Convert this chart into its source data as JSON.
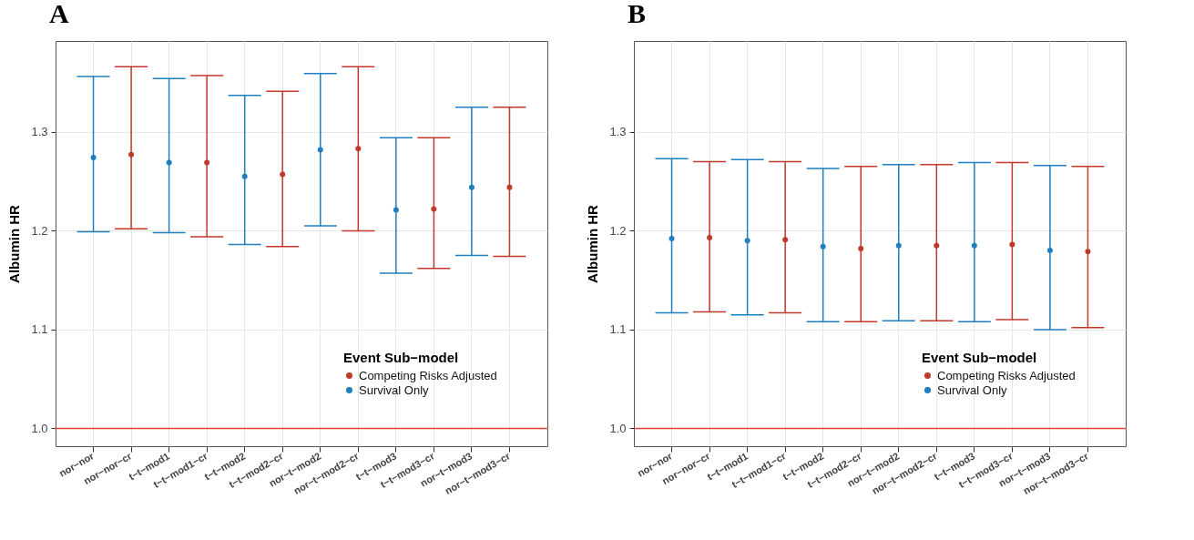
{
  "chart_data": [
    {
      "type": "scatter",
      "title": "A",
      "ylabel": "Albumin HR",
      "legend_title": "Event Sub−model",
      "legend": "bottom right",
      "grid": true,
      "marker": "circle",
      "categories": [
        "nor−nor",
        "nor−nor−cr",
        "t−t−mod1",
        "t−t−mod1−cr",
        "t−t−mod2",
        "t−t−mod2−cr",
        "nor−t−mod2",
        "nor−t−mod2−cr",
        "t−t−mod3",
        "t−t−mod3−cr",
        "nor−t−mod3",
        "nor−t−mod3−cr"
      ],
      "ylim": [
        0.982,
        1.392
      ],
      "yticks": [
        {
          "value": 1,
          "label": "1.0"
        },
        1.1,
        1.2,
        1.3
      ],
      "ref_lines": [
        {
          "axis": "y",
          "value": 1.0,
          "color": "#e8403a"
        }
      ],
      "series": [
        {
          "name": "Competing Risks Adjusted",
          "color": "#c0392b",
          "values": [
            null,
            1.277,
            null,
            1.269,
            null,
            1.257,
            null,
            1.283,
            null,
            1.222,
            null,
            1.244
          ],
          "errors": [
            null,
            [
              1.202,
              1.366
            ],
            null,
            [
              1.194,
              1.357
            ],
            null,
            [
              1.184,
              1.341
            ],
            null,
            [
              1.2,
              1.366
            ],
            null,
            [
              1.162,
              1.294
            ],
            null,
            [
              1.174,
              1.325
            ]
          ]
        },
        {
          "name": "Survival Only",
          "color": "#1f7fbf",
          "values": [
            1.274,
            null,
            1.269,
            null,
            1.255,
            null,
            1.282,
            null,
            1.221,
            null,
            1.244,
            null
          ],
          "errors": [
            [
              1.199,
              1.356
            ],
            null,
            [
              1.198,
              1.354
            ],
            null,
            [
              1.186,
              1.337
            ],
            null,
            [
              1.205,
              1.359
            ],
            null,
            [
              1.157,
              1.294
            ],
            null,
            [
              1.175,
              1.325
            ],
            null
          ]
        }
      ]
    },
    {
      "type": "scatter",
      "title": "B",
      "ylabel": "Albumin HR",
      "legend_title": "Event Sub−model",
      "legend": "bottom right",
      "grid": true,
      "marker": "circle",
      "categories": [
        "nor−nor",
        "nor−nor−cr",
        "t−t−mod1",
        "t−t−mod1−cr",
        "t−t−mod2",
        "t−t−mod2−cr",
        "nor−t−mod2",
        "nor−t−mod2−cr",
        "t−t−mod3",
        "t−t−mod3−cr",
        "nor−t−mod3",
        "nor−t−mod3−cr"
      ],
      "ylim": [
        0.982,
        1.392
      ],
      "yticks": [
        {
          "value": 1,
          "label": "1.0"
        },
        1.1,
        1.2,
        1.3
      ],
      "ref_lines": [
        {
          "axis": "y",
          "value": 1.0,
          "color": "#e8403a"
        }
      ],
      "series": [
        {
          "name": "Competing Risks Adjusted",
          "color": "#c0392b",
          "values": [
            null,
            1.193,
            null,
            1.191,
            null,
            1.182,
            null,
            1.185,
            null,
            1.186,
            null,
            1.179
          ],
          "errors": [
            null,
            [
              1.118,
              1.27
            ],
            null,
            [
              1.117,
              1.27
            ],
            null,
            [
              1.108,
              1.265
            ],
            null,
            [
              1.109,
              1.267
            ],
            null,
            [
              1.11,
              1.269
            ],
            null,
            [
              1.102,
              1.265
            ]
          ]
        },
        {
          "name": "Survival Only",
          "color": "#1f7fbf",
          "values": [
            1.192,
            null,
            1.19,
            null,
            1.184,
            null,
            1.185,
            null,
            1.185,
            null,
            1.18,
            null
          ],
          "errors": [
            [
              1.117,
              1.273
            ],
            null,
            [
              1.115,
              1.272
            ],
            null,
            [
              1.108,
              1.263
            ],
            null,
            [
              1.109,
              1.267
            ],
            null,
            [
              1.108,
              1.269
            ],
            null,
            [
              1.1,
              1.266
            ],
            null
          ]
        }
      ]
    }
  ]
}
